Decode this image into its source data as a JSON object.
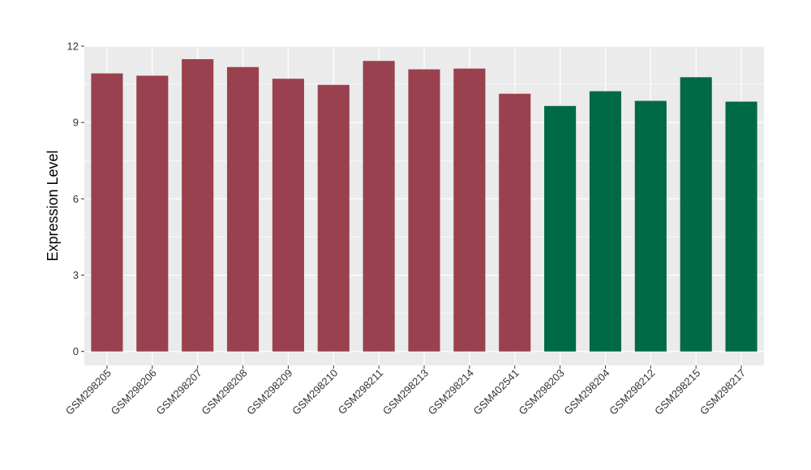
{
  "chart_data": {
    "type": "bar",
    "ylabel": "Expression Level",
    "xlabel": "",
    "ylim": [
      -0.55,
      12
    ],
    "yticks": [
      0,
      3,
      6,
      9,
      12
    ],
    "grid": true,
    "categories": [
      "GSM298205",
      "GSM298206",
      "GSM298207",
      "GSM298208",
      "GSM298209",
      "GSM298210",
      "GSM298211",
      "GSM298213",
      "GSM298214",
      "GSM402541",
      "GSM298203",
      "GSM298204",
      "GSM298212",
      "GSM298215",
      "GSM298217"
    ],
    "values": [
      10.93,
      10.84,
      11.49,
      11.18,
      10.72,
      10.48,
      11.42,
      11.09,
      11.12,
      10.13,
      9.65,
      10.23,
      9.85,
      10.78,
      9.82
    ],
    "bar_colors": [
      "#99414e",
      "#99414e",
      "#99414e",
      "#99414e",
      "#99414e",
      "#99414e",
      "#99414e",
      "#99414e",
      "#99414e",
      "#99414e",
      "#006946",
      "#006946",
      "#006946",
      "#006946",
      "#006946"
    ],
    "panel_background": "#ebebeb",
    "gridline_color": "#ffffff"
  }
}
